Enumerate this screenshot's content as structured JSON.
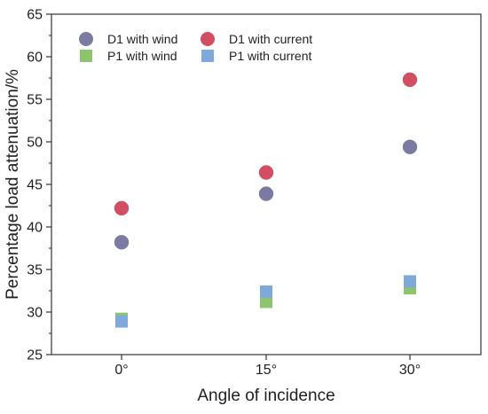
{
  "chart_data": {
    "type": "scatter",
    "title": "",
    "xlabel": "Angle of incidence",
    "ylabel": "Percentage load attenuation/%",
    "categories": [
      "0°",
      "15°",
      "30°"
    ],
    "ylim": [
      25,
      65
    ],
    "yticks": [
      25,
      30,
      35,
      40,
      45,
      50,
      55,
      60,
      65
    ],
    "grid": false,
    "legend_position": "top-left",
    "series": [
      {
        "name": "D1 with wind",
        "marker": "circle",
        "color": "#7a7aa3",
        "values": [
          38.2,
          43.9,
          49.4
        ]
      },
      {
        "name": "D1 with current",
        "marker": "circle",
        "color": "#d24f63",
        "values": [
          42.2,
          46.4,
          57.3
        ]
      },
      {
        "name": "P1 with wind",
        "marker": "square",
        "color": "#8dc46e",
        "values": [
          29.2,
          31.2,
          32.8
        ]
      },
      {
        "name": "P1 with current",
        "marker": "square",
        "color": "#7fa9d9",
        "values": [
          28.9,
          32.4,
          33.6
        ]
      }
    ]
  }
}
